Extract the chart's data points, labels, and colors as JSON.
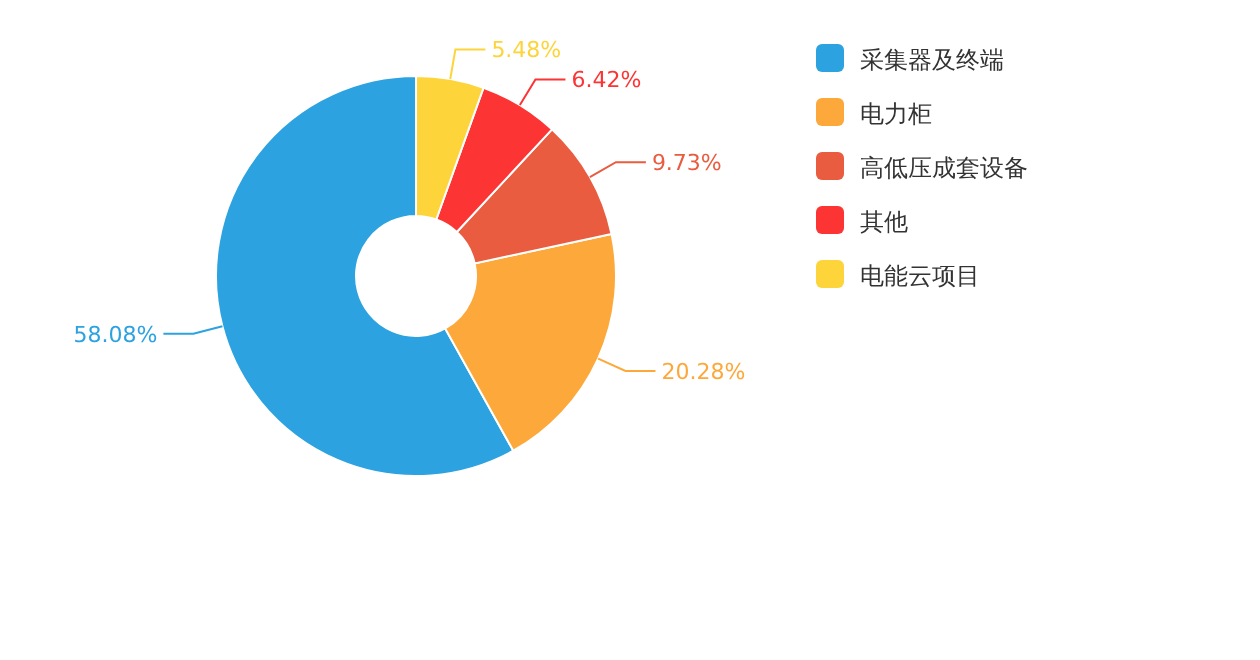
{
  "chart_data": {
    "type": "donut",
    "categories": [
      "采集器及终端",
      "电力柜",
      "高低压成套设备",
      "其他",
      "电能云项目"
    ],
    "values": [
      58.08,
      20.28,
      9.73,
      6.42,
      5.48
    ],
    "colors": [
      "#2ca2e0",
      "#fda83a",
      "#e95c3f",
      "#fc3434",
      "#fdd43a"
    ],
    "value_labels": [
      "58.08%",
      "20.28%",
      "9.73%",
      "6.42%",
      "5.48%"
    ],
    "legend": "right"
  }
}
